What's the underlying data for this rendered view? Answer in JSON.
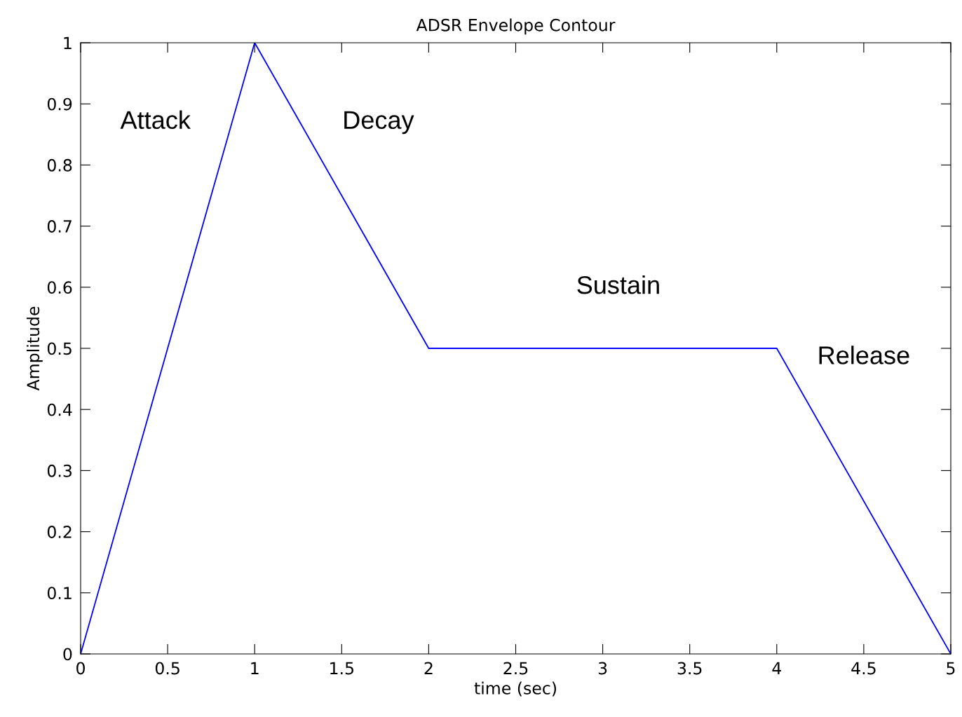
{
  "chart_data": {
    "type": "line",
    "title": "ADSR Envelope Contour",
    "xlabel": "time (sec)",
    "ylabel": "Amplitude",
    "x": [
      0,
      1,
      2,
      4,
      5
    ],
    "series": [
      {
        "color": "#0000ff",
        "values": [
          0,
          1,
          0.5,
          0.5,
          0
        ]
      }
    ],
    "xlim": [
      0,
      5
    ],
    "ylim": [
      0,
      1
    ],
    "xticks": [
      0,
      0.5,
      1,
      1.5,
      2,
      2.5,
      3,
      3.5,
      4,
      4.5,
      5
    ],
    "yticks": [
      0,
      0.1,
      0.2,
      0.3,
      0.4,
      0.5,
      0.6,
      0.7,
      0.8,
      0.9,
      1
    ],
    "annotations": [
      "Attack",
      "Decay",
      "Sustain",
      "Release"
    ],
    "grid": false,
    "marker": "none",
    "line_style": "solid"
  }
}
